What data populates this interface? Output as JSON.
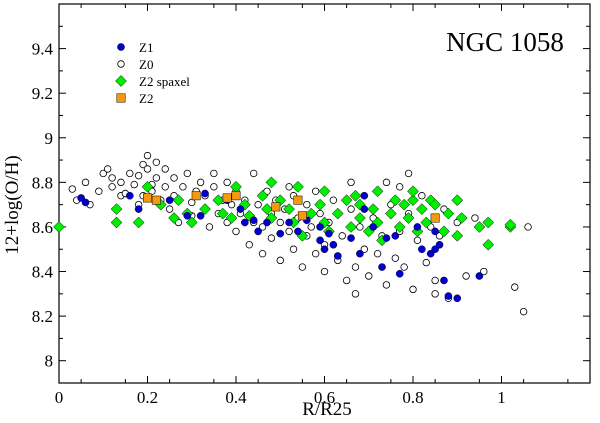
{
  "chart_data": {
    "type": "scatter",
    "title": "NGC 1058",
    "xlabel": "R/R25",
    "ylabel": "12+log(O/H)",
    "xlim": [
      0,
      1.2
    ],
    "ylim": [
      7.9,
      9.6
    ],
    "xticks": [
      0,
      0.2,
      0.4,
      0.6,
      0.8,
      1
    ],
    "xtick_labels": [
      "0",
      "0.2",
      "0.4",
      "0.6",
      "0.8",
      "1"
    ],
    "yticks": [
      8,
      8.2,
      8.4,
      8.6,
      8.8,
      9,
      9.2,
      9.4
    ],
    "ytick_labels": [
      "8",
      "8.2",
      "8.4",
      "8.6",
      "8.8",
      "9",
      "9.2",
      "9.4"
    ],
    "legend_position": "top-left",
    "series": [
      {
        "name": "Z0",
        "marker": "open-circle",
        "color": "#000000",
        "points": [
          [
            0.03,
            8.77
          ],
          [
            0.04,
            8.72
          ],
          [
            0.06,
            8.8
          ],
          [
            0.07,
            8.7
          ],
          [
            0.09,
            8.76
          ],
          [
            0.1,
            8.84
          ],
          [
            0.11,
            8.86
          ],
          [
            0.12,
            8.82
          ],
          [
            0.12,
            8.78
          ],
          [
            0.14,
            8.74
          ],
          [
            0.14,
            8.8
          ],
          [
            0.15,
            8.75
          ],
          [
            0.16,
            8.84
          ],
          [
            0.17,
            8.79
          ],
          [
            0.18,
            8.83
          ],
          [
            0.18,
            8.7
          ],
          [
            0.19,
            8.88
          ],
          [
            0.19,
            8.74
          ],
          [
            0.2,
            8.92
          ],
          [
            0.2,
            8.86
          ],
          [
            0.21,
            8.79
          ],
          [
            0.21,
            8.76
          ],
          [
            0.22,
            8.89
          ],
          [
            0.22,
            8.82
          ],
          [
            0.23,
            8.72
          ],
          [
            0.24,
            8.86
          ],
          [
            0.24,
            8.78
          ],
          [
            0.25,
            8.68
          ],
          [
            0.26,
            8.82
          ],
          [
            0.26,
            8.74
          ],
          [
            0.27,
            8.62
          ],
          [
            0.28,
            8.78
          ],
          [
            0.29,
            8.84
          ],
          [
            0.3,
            8.71
          ],
          [
            0.3,
            8.65
          ],
          [
            0.31,
            8.76
          ],
          [
            0.32,
            8.8
          ],
          [
            0.33,
            8.68
          ],
          [
            0.33,
            8.74
          ],
          [
            0.34,
            8.6
          ],
          [
            0.35,
            8.78
          ],
          [
            0.36,
            8.66
          ],
          [
            0.37,
            8.72
          ],
          [
            0.38,
            8.62
          ],
          [
            0.38,
            8.8
          ],
          [
            0.39,
            8.7
          ],
          [
            0.4,
            8.76
          ],
          [
            0.4,
            8.58
          ],
          [
            0.41,
            8.66
          ],
          [
            0.42,
            8.72
          ],
          [
            0.43,
            8.52
          ],
          [
            0.44,
            8.62
          ],
          [
            0.45,
            8.7
          ],
          [
            0.46,
            8.6
          ],
          [
            0.46,
            8.48
          ],
          [
            0.47,
            8.76
          ],
          [
            0.48,
            8.66
          ],
          [
            0.48,
            8.55
          ],
          [
            0.49,
            8.72
          ],
          [
            0.5,
            8.62
          ],
          [
            0.5,
            8.45
          ],
          [
            0.51,
            8.68
          ],
          [
            0.52,
            8.58
          ],
          [
            0.53,
            8.74
          ],
          [
            0.53,
            8.5
          ],
          [
            0.54,
            8.64
          ],
          [
            0.55,
            8.42
          ],
          [
            0.56,
            8.7
          ],
          [
            0.56,
            8.56
          ],
          [
            0.57,
            8.6
          ],
          [
            0.58,
            8.48
          ],
          [
            0.59,
            8.66
          ],
          [
            0.6,
            8.52
          ],
          [
            0.6,
            8.4
          ],
          [
            0.61,
            8.62
          ],
          [
            0.62,
            8.72
          ],
          [
            0.63,
            8.45
          ],
          [
            0.64,
            8.56
          ],
          [
            0.65,
            8.36
          ],
          [
            0.66,
            8.68
          ],
          [
            0.67,
            8.42
          ],
          [
            0.67,
            8.3
          ],
          [
            0.68,
            8.6
          ],
          [
            0.69,
            8.5
          ],
          [
            0.7,
            8.38
          ],
          [
            0.71,
            8.64
          ],
          [
            0.72,
            8.48
          ],
          [
            0.73,
            8.56
          ],
          [
            0.74,
            8.34
          ],
          [
            0.75,
            8.7
          ],
          [
            0.76,
            8.46
          ],
          [
            0.77,
            8.78
          ],
          [
            0.77,
            8.58
          ],
          [
            0.78,
            8.42
          ],
          [
            0.79,
            8.66
          ],
          [
            0.8,
            8.32
          ],
          [
            0.81,
            8.54
          ],
          [
            0.82,
            8.74
          ],
          [
            0.83,
            8.44
          ],
          [
            0.84,
            8.6
          ],
          [
            0.85,
            8.36
          ],
          [
            0.85,
            8.3
          ],
          [
            0.86,
            8.56
          ],
          [
            0.87,
            8.68
          ],
          [
            0.88,
            8.28
          ],
          [
            0.9,
            8.62
          ],
          [
            0.92,
            8.38
          ],
          [
            0.94,
            8.64
          ],
          [
            0.96,
            8.4
          ],
          [
            1.03,
            8.33
          ],
          [
            1.05,
            8.22
          ],
          [
            1.06,
            8.6
          ],
          [
            0.79,
            8.84
          ],
          [
            0.66,
            8.8
          ],
          [
            0.58,
            8.76
          ],
          [
            0.44,
            8.84
          ],
          [
            0.35,
            8.84
          ],
          [
            0.52,
            8.78
          ],
          [
            0.74,
            8.8
          ],
          [
            0.71,
            8.6
          ]
        ]
      },
      {
        "name": "Z2 spaxel",
        "marker": "diamond",
        "color": "#00ee00",
        "points": [
          [
            0,
            8.6
          ],
          [
            0.13,
            8.68
          ],
          [
            0.13,
            8.62
          ],
          [
            0.18,
            8.62
          ],
          [
            0.2,
            8.78
          ],
          [
            0.23,
            8.7
          ],
          [
            0.26,
            8.64
          ],
          [
            0.27,
            8.72
          ],
          [
            0.29,
            8.66
          ],
          [
            0.3,
            8.62
          ],
          [
            0.33,
            8.68
          ],
          [
            0.36,
            8.72
          ],
          [
            0.37,
            8.66
          ],
          [
            0.39,
            8.64
          ],
          [
            0.4,
            8.78
          ],
          [
            0.42,
            8.7
          ],
          [
            0.43,
            8.65
          ],
          [
            0.46,
            8.74
          ],
          [
            0.47,
            8.68
          ],
          [
            0.48,
            8.8
          ],
          [
            0.48,
            8.64
          ],
          [
            0.5,
            8.72
          ],
          [
            0.52,
            8.68
          ],
          [
            0.53,
            8.62
          ],
          [
            0.54,
            8.78
          ],
          [
            0.55,
            8.56
          ],
          [
            0.57,
            8.66
          ],
          [
            0.59,
            8.7
          ],
          [
            0.6,
            8.62
          ],
          [
            0.6,
            8.76
          ],
          [
            0.61,
            8.58
          ],
          [
            0.63,
            8.66
          ],
          [
            0.65,
            8.72
          ],
          [
            0.66,
            8.6
          ],
          [
            0.67,
            8.74
          ],
          [
            0.68,
            8.64
          ],
          [
            0.68,
            8.7
          ],
          [
            0.7,
            8.58
          ],
          [
            0.71,
            8.68
          ],
          [
            0.72,
            8.76
          ],
          [
            0.72,
            8.62
          ],
          [
            0.73,
            8.54
          ],
          [
            0.75,
            8.66
          ],
          [
            0.76,
            8.72
          ],
          [
            0.77,
            8.6
          ],
          [
            0.78,
            8.7
          ],
          [
            0.79,
            8.64
          ],
          [
            0.8,
            8.72
          ],
          [
            0.8,
            8.76
          ],
          [
            0.81,
            8.58
          ],
          [
            0.82,
            8.68
          ],
          [
            0.83,
            8.62
          ],
          [
            0.84,
            8.72
          ],
          [
            0.85,
            8.7
          ],
          [
            0.87,
            8.58
          ],
          [
            0.88,
            8.66
          ],
          [
            0.9,
            8.56
          ],
          [
            0.9,
            8.72
          ],
          [
            0.91,
            8.64
          ],
          [
            0.95,
            8.6
          ],
          [
            0.97,
            8.62
          ],
          [
            0.97,
            8.52
          ],
          [
            1.02,
            8.6
          ],
          [
            1.02,
            8.61
          ]
        ]
      },
      {
        "name": "Z1",
        "marker": "filled-circle",
        "color": "#0000cc",
        "points": [
          [
            0.05,
            8.73
          ],
          [
            0.06,
            8.71
          ],
          [
            0.16,
            8.74
          ],
          [
            0.18,
            8.68
          ],
          [
            0.22,
            8.72
          ],
          [
            0.25,
            8.72
          ],
          [
            0.29,
            8.65
          ],
          [
            0.32,
            8.65
          ],
          [
            0.33,
            8.75
          ],
          [
            0.38,
            8.72
          ],
          [
            0.41,
            8.68
          ],
          [
            0.42,
            8.62
          ],
          [
            0.44,
            8.63
          ],
          [
            0.45,
            8.58
          ],
          [
            0.47,
            8.62
          ],
          [
            0.5,
            8.57
          ],
          [
            0.52,
            8.62
          ],
          [
            0.54,
            8.58
          ],
          [
            0.56,
            8.63
          ],
          [
            0.59,
            8.54
          ],
          [
            0.59,
            8.6
          ],
          [
            0.6,
            8.5
          ],
          [
            0.61,
            8.57
          ],
          [
            0.62,
            8.52
          ],
          [
            0.63,
            8.47
          ],
          [
            0.66,
            8.55
          ],
          [
            0.68,
            8.48
          ],
          [
            0.69,
            8.68
          ],
          [
            0.69,
            8.74
          ],
          [
            0.71,
            8.6
          ],
          [
            0.73,
            8.42
          ],
          [
            0.74,
            8.55
          ],
          [
            0.76,
            8.56
          ],
          [
            0.77,
            8.39
          ],
          [
            0.81,
            8.6
          ],
          [
            0.82,
            8.5
          ],
          [
            0.84,
            8.48
          ],
          [
            0.85,
            8.5
          ],
          [
            0.85,
            8.58
          ],
          [
            0.87,
            8.36
          ],
          [
            0.88,
            8.29
          ],
          [
            0.9,
            8.28
          ],
          [
            0.95,
            8.38
          ],
          [
            0.86,
            8.52
          ]
        ]
      },
      {
        "name": "Z2",
        "marker": "square",
        "color": "#f59a10",
        "points": [
          [
            0.2,
            8.73
          ],
          [
            0.22,
            8.72
          ],
          [
            0.31,
            8.74
          ],
          [
            0.38,
            8.73
          ],
          [
            0.4,
            8.74
          ],
          [
            0.49,
            8.69
          ],
          [
            0.54,
            8.72
          ],
          [
            0.55,
            8.65
          ],
          [
            0.85,
            8.64
          ]
        ]
      }
    ],
    "legend": {
      "entries": [
        {
          "label": "Z1",
          "marker": "filled-circle",
          "color": "#0000cc"
        },
        {
          "label": "Z0",
          "marker": "open-circle",
          "color": "#000000"
        },
        {
          "label": "Z2 spaxel",
          "marker": "diamond",
          "color": "#00ee00"
        },
        {
          "label": "Z2",
          "marker": "square",
          "color": "#f59a10"
        }
      ]
    }
  }
}
